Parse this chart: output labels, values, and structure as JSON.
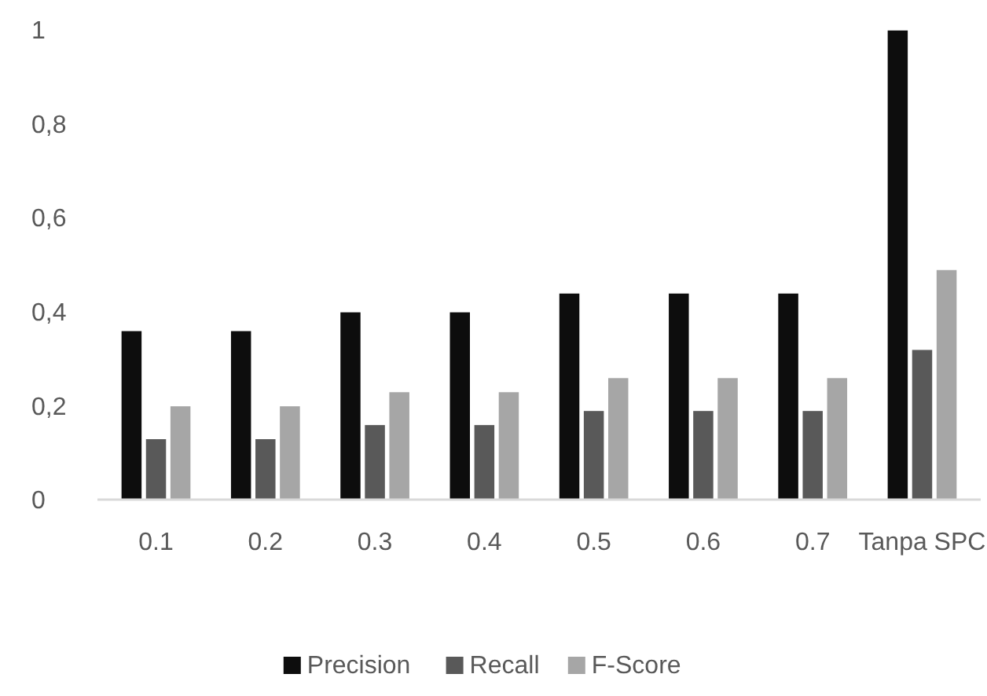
{
  "chart_data": {
    "type": "bar",
    "categories": [
      "0.1",
      "0.2",
      "0.3",
      "0.4",
      "0.5",
      "0.6",
      "0.7",
      "Tanpa SPC"
    ],
    "series": [
      {
        "name": "Precision",
        "color": "#0d0d0d",
        "values": [
          0.36,
          0.36,
          0.4,
          0.4,
          0.44,
          0.44,
          0.44,
          1
        ]
      },
      {
        "name": "Recall",
        "color": "#595959",
        "values": [
          0.13,
          0.13,
          0.16,
          0.16,
          0.19,
          0.19,
          0.19,
          0.32
        ]
      },
      {
        "name": "F-Score",
        "color": "#a6a6a6",
        "values": [
          0.2,
          0.2,
          0.23,
          0.23,
          0.26,
          0.26,
          0.26,
          0.49
        ]
      }
    ],
    "ylim": [
      0,
      1
    ],
    "yticks": [
      {
        "value": 0,
        "label": "0"
      },
      {
        "value": 0.2,
        "label": "0,2"
      },
      {
        "value": 0.4,
        "label": "0,4"
      },
      {
        "value": 0.6,
        "label": "0,6"
      },
      {
        "value": 0.8,
        "label": "0,8"
      },
      {
        "value": 1,
        "label": "1"
      }
    ],
    "grid": false,
    "legend": "bottom"
  }
}
